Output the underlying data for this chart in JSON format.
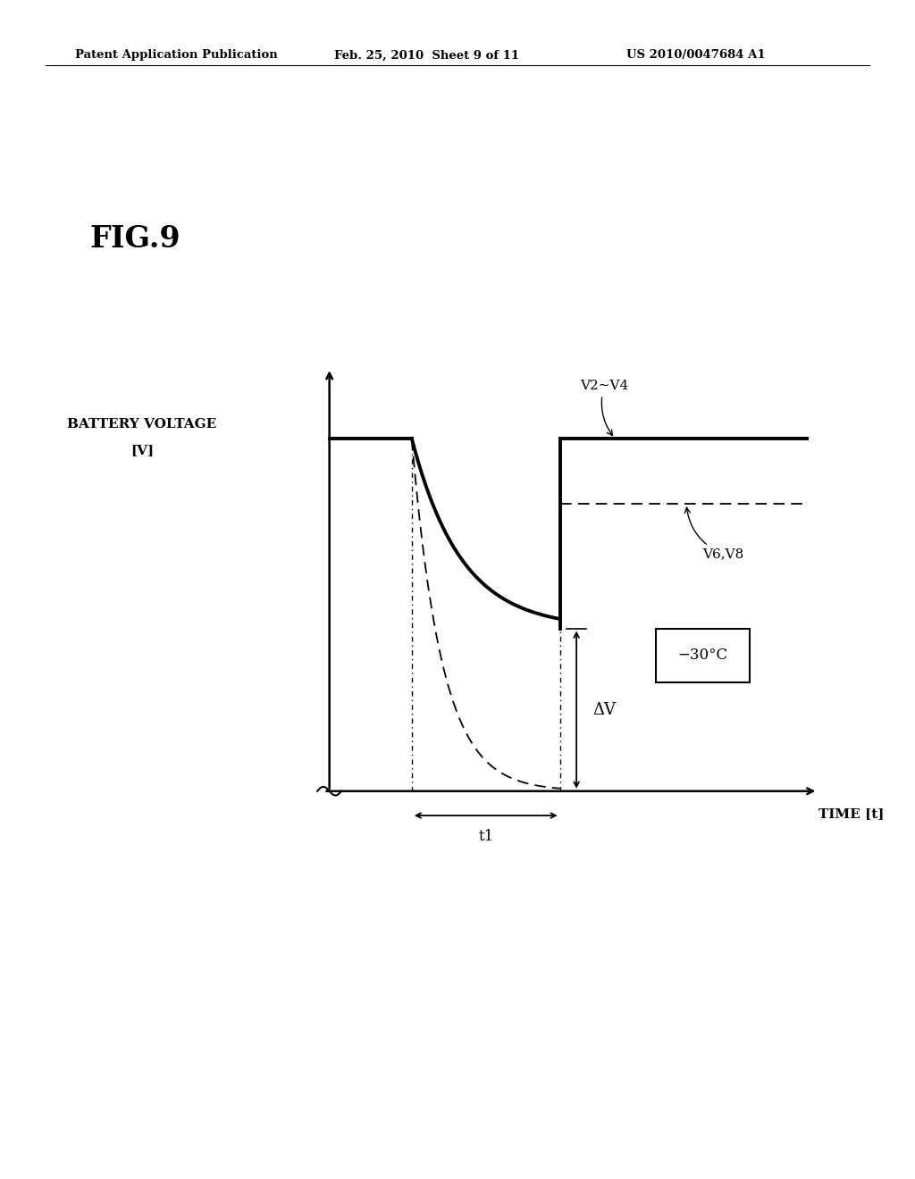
{
  "fig_label": "FIG.9",
  "header_left": "Patent Application Publication",
  "header_mid": "Feb. 25, 2010  Sheet 9 of 11",
  "header_right": "US 2010/0047684 A1",
  "ylabel_line1": "BATTERY VOLTAGE",
  "ylabel_line2": "[V]",
  "xlabel": "TIME [t]",
  "temp_label": "−30°C",
  "v2v4_label": "V2∼V4",
  "v6v8_label": "V6,V8",
  "delta_v_label": "ΔV",
  "t1_label": "t1",
  "background_color": "#ffffff"
}
